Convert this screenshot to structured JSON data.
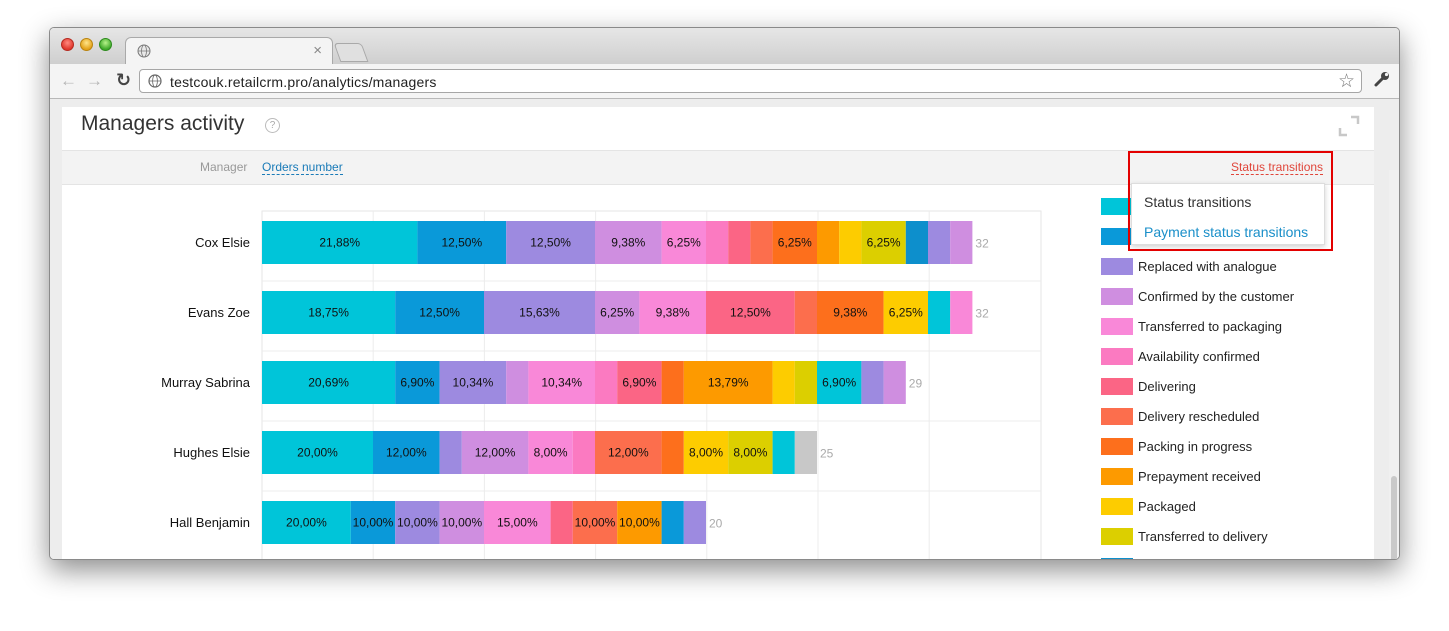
{
  "browser": {
    "url": "testcouk.retailcrm.pro/analytics/managers",
    "tab_close": "×"
  },
  "page": {
    "title": "Managers activity",
    "help": "?"
  },
  "filters": {
    "manager_label": "Manager",
    "orders_number_link": "Orders number",
    "status_transitions_link": "Status transitions"
  },
  "dropdown": {
    "options": [
      "Status transitions",
      "Payment status transitions"
    ],
    "highlighted": "Payment status transitions"
  },
  "colors": [
    "#00c5d9",
    "#0a99d9",
    "#9d8ae0",
    "#cf8ee0",
    "#f988d8",
    "#fb7ac1",
    "#fb6585",
    "#fc6e4d",
    "#fd6f1c",
    "#fd9a00",
    "#fdcc00",
    "#dccf00",
    "#0d8fcc",
    "#c8c8c8"
  ],
  "chart_data": {
    "type": "bar",
    "orientation": "horizontal",
    "stacked": true,
    "categories": [
      "Cox Elsie",
      "Evans Zoe",
      "Murray Sabrina",
      "Hughes Elsie",
      "Hall Benjamin"
    ],
    "totals": [
      32,
      32,
      29,
      25,
      20
    ],
    "segments": [
      [
        [
          0,
          7,
          "21,88%"
        ],
        [
          1,
          4,
          "12,50%"
        ],
        [
          2,
          4,
          "12,50%"
        ],
        [
          3,
          3,
          "9,38%"
        ],
        [
          4,
          2,
          "6,25%"
        ],
        [
          5,
          1,
          ""
        ],
        [
          6,
          1,
          ""
        ],
        [
          7,
          1,
          ""
        ],
        [
          8,
          2,
          "6,25%"
        ],
        [
          9,
          1,
          ""
        ],
        [
          10,
          1,
          ""
        ],
        [
          11,
          2,
          "6,25%"
        ],
        [
          12,
          1,
          ""
        ],
        [
          2,
          1,
          ""
        ],
        [
          3,
          1,
          ""
        ]
      ],
      [
        [
          0,
          6,
          "18,75%"
        ],
        [
          1,
          4,
          "12,50%"
        ],
        [
          2,
          5,
          "15,63%"
        ],
        [
          3,
          2,
          "6,25%"
        ],
        [
          4,
          3,
          "9,38%"
        ],
        [
          6,
          4,
          "12,50%"
        ],
        [
          7,
          1,
          ""
        ],
        [
          8,
          3,
          "9,38%"
        ],
        [
          10,
          2,
          "6,25%"
        ],
        [
          0,
          1,
          ""
        ],
        [
          4,
          1,
          ""
        ]
      ],
      [
        [
          0,
          6,
          "20,69%"
        ],
        [
          1,
          2,
          "6,90%"
        ],
        [
          2,
          3,
          "10,34%"
        ],
        [
          3,
          1,
          ""
        ],
        [
          4,
          3,
          "10,34%"
        ],
        [
          5,
          1,
          ""
        ],
        [
          6,
          2,
          "6,90%"
        ],
        [
          8,
          1,
          ""
        ],
        [
          9,
          4,
          "13,79%"
        ],
        [
          10,
          1,
          ""
        ],
        [
          11,
          1,
          ""
        ],
        [
          0,
          2,
          "6,90%"
        ],
        [
          2,
          1,
          ""
        ],
        [
          3,
          1,
          ""
        ]
      ],
      [
        [
          0,
          5,
          "20,00%"
        ],
        [
          1,
          3,
          "12,00%"
        ],
        [
          2,
          1,
          ""
        ],
        [
          3,
          3,
          "12,00%"
        ],
        [
          4,
          2,
          "8,00%"
        ],
        [
          5,
          1,
          ""
        ],
        [
          7,
          3,
          "12,00%"
        ],
        [
          8,
          1,
          ""
        ],
        [
          10,
          2,
          "8,00%"
        ],
        [
          11,
          2,
          "8,00%"
        ],
        [
          0,
          1,
          ""
        ],
        [
          13,
          1,
          ""
        ]
      ],
      [
        [
          0,
          4,
          "20,00%"
        ],
        [
          1,
          2,
          "10,00%"
        ],
        [
          2,
          2,
          "10,00%"
        ],
        [
          3,
          2,
          "10,00%"
        ],
        [
          4,
          3,
          "15,00%"
        ],
        [
          6,
          1,
          ""
        ],
        [
          7,
          2,
          "10,00%"
        ],
        [
          9,
          2,
          "10,00%"
        ],
        [
          1,
          1,
          ""
        ],
        [
          2,
          1,
          ""
        ]
      ]
    ],
    "legend": [
      {
        "label": "",
        "color_index": 0
      },
      {
        "label": "",
        "color_index": 1
      },
      {
        "label": "Replaced with analogue",
        "color_index": 2
      },
      {
        "label": "Confirmed by the customer",
        "color_index": 3
      },
      {
        "label": "Transferred to packaging",
        "color_index": 4
      },
      {
        "label": "Availability confirmed",
        "color_index": 5
      },
      {
        "label": "Delivering",
        "color_index": 6
      },
      {
        "label": "Delivery rescheduled",
        "color_index": 7
      },
      {
        "label": "Packing in progress",
        "color_index": 8
      },
      {
        "label": "Prepayment received",
        "color_index": 9
      },
      {
        "label": "Packaged",
        "color_index": 10
      },
      {
        "label": "Transferred to delivery",
        "color_index": 11
      },
      {
        "label": "",
        "color_index": 12
      }
    ],
    "grid": true,
    "legend_position": "right"
  }
}
